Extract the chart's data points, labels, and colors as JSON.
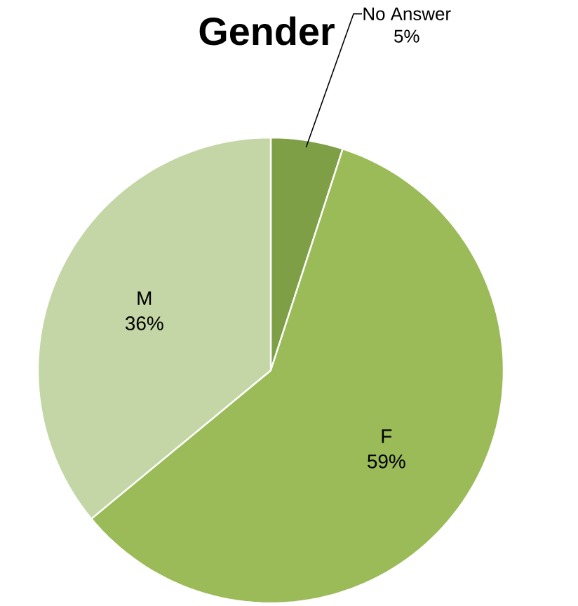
{
  "chart_data": {
    "type": "pie",
    "title": "Gender",
    "categories": [
      "No Answer",
      "F",
      "M"
    ],
    "values": [
      5,
      59,
      36
    ],
    "value_labels": [
      "5%",
      "59%",
      "36%"
    ],
    "colors": [
      "#7f9f47",
      "#9bbb59",
      "#c4d6a6"
    ]
  }
}
